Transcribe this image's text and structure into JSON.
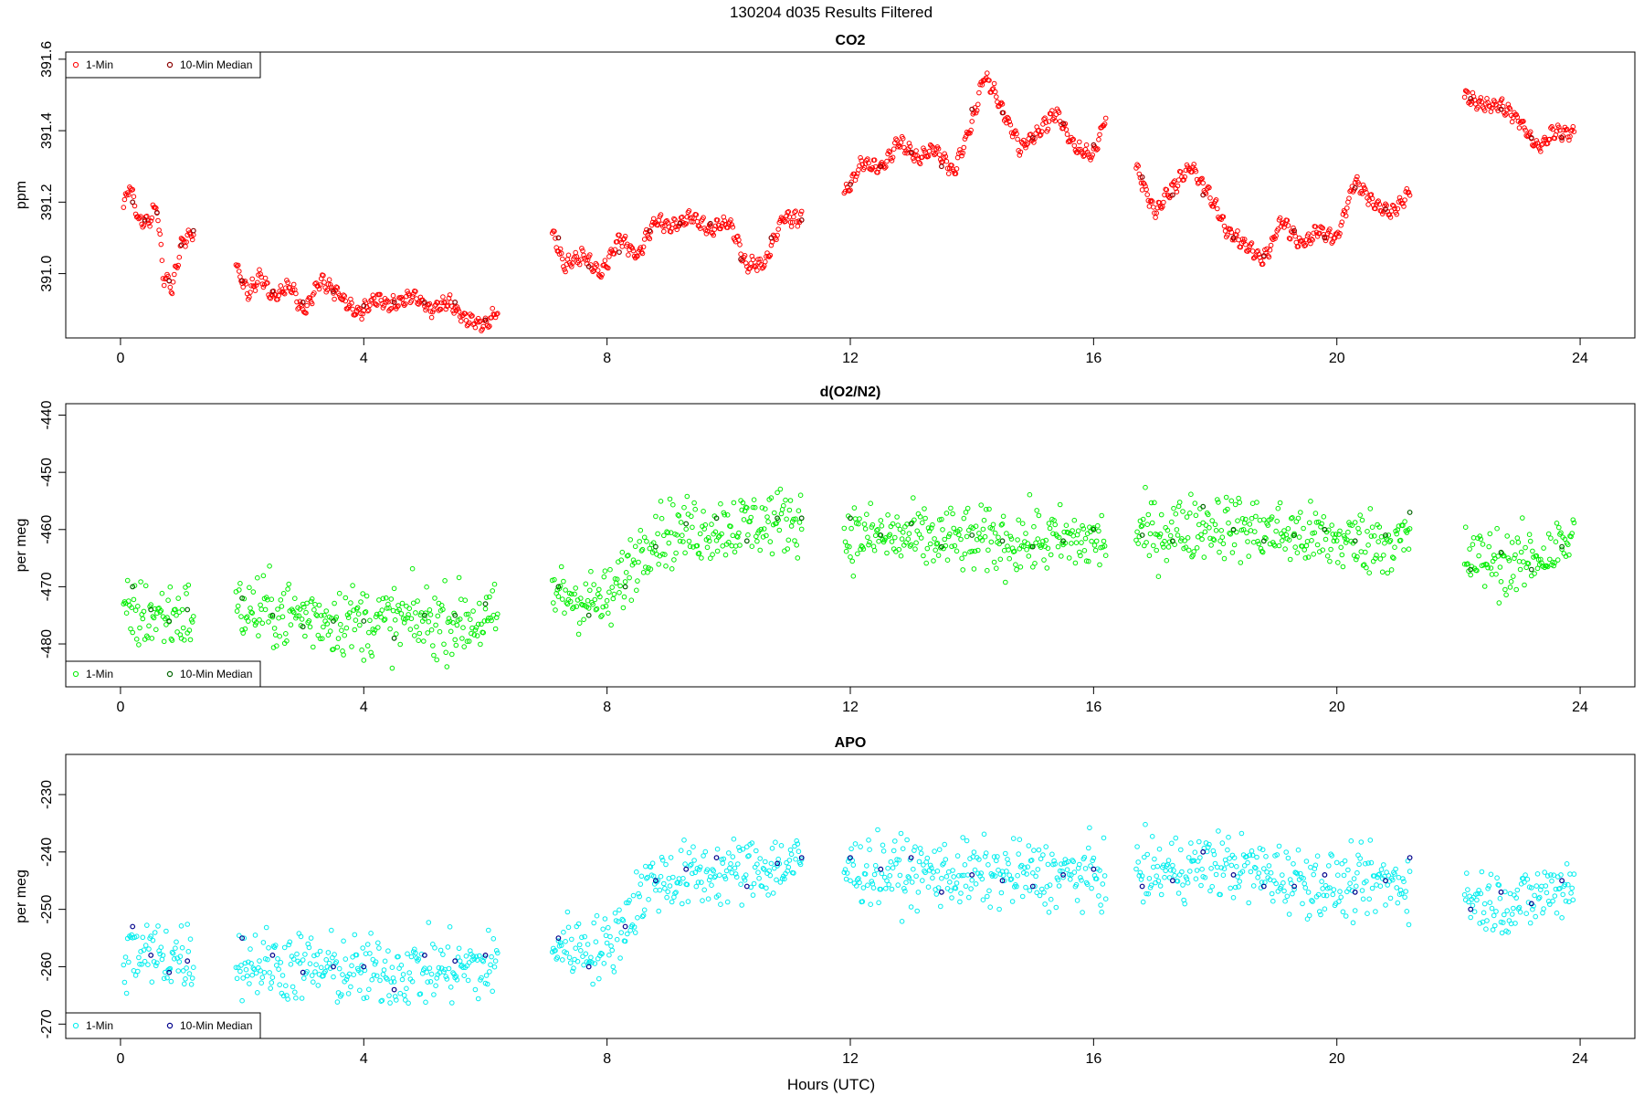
{
  "figure_title": "130204   d035   Results Filtered",
  "xlabel": "Hours (UTC)",
  "colors": {
    "co2_1min": "#ff0000",
    "co2_median": "#8b0000",
    "o2_1min": "#00ee00",
    "o2_median": "#006400",
    "apo_1min": "#00eeee",
    "apo_median": "#00008b",
    "axis": "#000000"
  },
  "chart_data": [
    {
      "type": "scatter",
      "title": "CO2",
      "ylabel": "ppm",
      "xlim": [
        -0.9,
        24.9
      ],
      "ylim": [
        390.82,
        391.62
      ],
      "xticks": [
        0,
        4,
        8,
        12,
        16,
        20,
        24
      ],
      "yticks": [
        391.0,
        391.2,
        391.4,
        391.6
      ],
      "ytick_labels": [
        "391.0",
        "391.2",
        "391.4",
        "391.6"
      ],
      "legend": {
        "position": "top-left",
        "entries": [
          "1-Min",
          "10-Min Median"
        ]
      },
      "grid": false,
      "series": [
        {
          "name": "1-Min",
          "segments": [
            {
              "x": [
                0.05,
                0.15,
                0.3,
                0.45,
                0.6,
                0.7,
                0.85,
                1.0,
                1.1,
                1.2
              ],
              "y": [
                391.18,
                391.25,
                391.15,
                391.14,
                391.19,
                391.0,
                390.96,
                391.08,
                391.1,
                391.12
              ]
            },
            {
              "x": [
                1.9,
                2.1,
                2.3,
                2.5,
                2.8,
                3.0,
                3.3,
                3.6,
                3.9,
                4.2,
                4.5,
                4.8,
                5.1,
                5.4,
                5.7,
                6.0,
                6.2
              ],
              "y": [
                391.02,
                390.94,
                391.0,
                390.93,
                390.97,
                390.89,
                390.98,
                390.94,
                390.89,
                390.93,
                390.91,
                390.94,
                390.9,
                390.92,
                390.87,
                390.86,
                390.89
              ]
            },
            {
              "x": [
                7.1,
                7.3,
                7.6,
                7.9,
                8.2,
                8.5,
                8.8,
                9.1,
                9.4,
                9.7,
                10.0,
                10.3,
                10.6,
                10.9,
                11.2
              ],
              "y": [
                391.12,
                391.02,
                391.05,
                391.0,
                391.1,
                391.05,
                391.15,
                391.13,
                391.16,
                391.12,
                391.15,
                391.02,
                391.03,
                391.16,
                391.15
              ]
            },
            {
              "x": [
                11.9,
                12.2,
                12.5,
                12.8,
                13.1,
                13.4,
                13.7,
                14.0,
                14.2,
                14.5,
                14.8,
                15.1,
                15.4,
                15.7,
                16.0,
                16.2
              ],
              "y": [
                391.22,
                391.31,
                391.29,
                391.37,
                391.32,
                391.35,
                391.28,
                391.42,
                391.56,
                391.46,
                391.35,
                391.4,
                391.45,
                391.35,
                391.33,
                391.44
              ]
            },
            {
              "x": [
                16.7,
                17.0,
                17.3,
                17.6,
                17.9,
                18.2,
                18.5,
                18.8,
                19.1,
                19.4,
                19.7,
                20.0,
                20.3,
                20.6,
                20.9,
                21.2
              ],
              "y": [
                391.3,
                391.17,
                391.24,
                391.3,
                391.22,
                391.12,
                391.08,
                391.04,
                391.15,
                391.08,
                391.12,
                391.1,
                391.26,
                391.2,
                391.17,
                391.23
              ]
            },
            {
              "x": [
                22.1,
                22.4,
                22.7,
                23.0,
                23.3,
                23.6,
                23.9
              ],
              "y": [
                391.5,
                391.47,
                391.47,
                391.43,
                391.35,
                391.4,
                391.39
              ]
            }
          ]
        },
        {
          "name": "10-Min Median",
          "segments": [
            {
              "x": [
                0.2,
                0.4,
                0.6,
                0.8,
                1.0,
                1.2
              ],
              "y": [
                391.2,
                391.15,
                391.17,
                390.98,
                391.08,
                391.12
              ]
            },
            {
              "x": [
                2.0,
                2.5,
                3.0,
                3.5,
                4.0,
                4.5,
                5.0,
                5.5,
                6.0
              ],
              "y": [
                390.98,
                390.95,
                390.92,
                390.95,
                390.91,
                390.92,
                390.92,
                390.92,
                390.87
              ]
            },
            {
              "x": [
                7.2,
                7.7,
                8.2,
                8.7,
                9.2,
                9.7,
                10.2,
                10.7,
                11.2
              ],
              "y": [
                391.1,
                391.02,
                391.06,
                391.12,
                391.14,
                391.14,
                391.04,
                391.1,
                391.15
              ]
            },
            {
              "x": [
                12.0,
                12.5,
                13.0,
                13.5,
                14.0,
                14.5,
                15.0,
                15.5,
                16.0
              ],
              "y": [
                391.25,
                391.3,
                391.34,
                391.3,
                391.46,
                391.45,
                391.38,
                391.42,
                391.36
              ]
            },
            {
              "x": [
                16.8,
                17.3,
                17.8,
                18.3,
                18.8,
                19.3,
                19.8,
                20.3,
                20.8
              ],
              "y": [
                391.27,
                391.22,
                391.22,
                391.1,
                391.05,
                391.12,
                391.1,
                391.24,
                391.18
              ]
            },
            {
              "x": [
                22.2,
                22.7,
                23.2,
                23.7
              ],
              "y": [
                391.49,
                391.46,
                391.38,
                391.38
              ]
            }
          ]
        }
      ]
    },
    {
      "type": "scatter",
      "title": "d(O2/N2)",
      "ylabel": "per meg",
      "xlim": [
        -0.9,
        24.9
      ],
      "ylim": [
        -487.5,
        -438
      ],
      "xticks": [
        0,
        4,
        8,
        12,
        16,
        20,
        24
      ],
      "yticks": [
        -480,
        -470,
        -460,
        -450,
        -440
      ],
      "ytick_labels": [
        "-480",
        "-470",
        "-460",
        "-450",
        "-440"
      ],
      "legend": {
        "position": "bottom-left",
        "entries": [
          "1-Min",
          "10-Min Median"
        ]
      },
      "grid": false,
      "series": [
        {
          "name": "1-Min",
          "scatter": true,
          "segments": [
            {
              "x": [
                0.05,
                0.95,
                1.2
              ],
              "y": [
                -475,
                -475,
                -475
              ],
              "spread": 6
            },
            {
              "x": [
                1.9,
                4.0,
                6.2
              ],
              "y": [
                -474,
                -476,
                -476
              ],
              "spread": 6
            },
            {
              "x": [
                7.1,
                8.0,
                8.7,
                11.2
              ],
              "y": [
                -471,
                -473,
                -461,
                -458
              ],
              "spread": 5.5
            },
            {
              "x": [
                11.9,
                14.0,
                16.2
              ],
              "y": [
                -461,
                -462,
                -462
              ],
              "spread": 5.5
            },
            {
              "x": [
                16.7,
                18.0,
                20.0,
                21.2
              ],
              "y": [
                -461,
                -459,
                -462,
                -462
              ],
              "spread": 5.5
            },
            {
              "x": [
                22.1,
                23.0,
                23.9
              ],
              "y": [
                -465,
                -466,
                -462
              ],
              "spread": 5.5
            }
          ]
        },
        {
          "name": "10-Min Median",
          "segments": [
            {
              "x": [
                0.2,
                0.5,
                0.8,
                1.1
              ],
              "y": [
                -470,
                -474,
                -476,
                -474
              ]
            },
            {
              "x": [
                2.0,
                2.5,
                3.0,
                3.5,
                4.0,
                4.5,
                5.0,
                5.5,
                6.0
              ],
              "y": [
                -472,
                -475,
                -477,
                -476,
                -476,
                -479,
                -475,
                -475,
                -473
              ]
            },
            {
              "x": [
                7.2,
                7.7,
                8.3,
                8.8,
                9.3,
                9.8,
                10.3,
                10.8,
                11.2
              ],
              "y": [
                -470,
                -475,
                -470,
                -463,
                -459,
                -458,
                -462,
                -458,
                -458
              ]
            },
            {
              "x": [
                12.0,
                12.5,
                13.0,
                13.5,
                14.0,
                14.5,
                15.0,
                15.5,
                16.0
              ],
              "y": [
                -458,
                -461,
                -459,
                -463,
                -461,
                -462,
                -463,
                -462,
                -460
              ]
            },
            {
              "x": [
                16.8,
                17.3,
                17.8,
                18.3,
                18.8,
                19.3,
                19.8,
                20.3,
                20.8,
                21.2
              ],
              "y": [
                -461,
                -462,
                -456,
                -460,
                -462,
                -461,
                -460,
                -462,
                -461,
                -457
              ]
            },
            {
              "x": [
                22.2,
                22.7,
                23.2,
                23.7
              ],
              "y": [
                -467,
                -464,
                -467,
                -463
              ]
            }
          ]
        }
      ]
    },
    {
      "type": "scatter",
      "title": "APO",
      "ylabel": "per meg",
      "xlim": [
        -0.9,
        24.9
      ],
      "ylim": [
        -272.5,
        -223
      ],
      "xticks": [
        0,
        4,
        8,
        12,
        16,
        20,
        24
      ],
      "yticks": [
        -270,
        -260,
        -250,
        -240,
        -230
      ],
      "ytick_labels": [
        "-270",
        "-260",
        "-250",
        "-240",
        "-230"
      ],
      "legend": {
        "position": "bottom-left",
        "entries": [
          "1-Min",
          "10-Min Median"
        ]
      },
      "grid": false,
      "series": [
        {
          "name": "1-Min",
          "scatter": true,
          "segments": [
            {
              "x": [
                0.05,
                0.95,
                1.2
              ],
              "y": [
                -258,
                -258,
                -258
              ],
              "spread": 6
            },
            {
              "x": [
                1.9,
                4.0,
                6.2
              ],
              "y": [
                -259,
                -261,
                -260
              ],
              "spread": 6
            },
            {
              "x": [
                7.1,
                8.0,
                8.7,
                11.2
              ],
              "y": [
                -256,
                -257,
                -245,
                -242
              ],
              "spread": 5.5
            },
            {
              "x": [
                11.9,
                14.0,
                16.2
              ],
              "y": [
                -243,
                -244,
                -244
              ],
              "spread": 5.5
            },
            {
              "x": [
                16.7,
                18.0,
                20.0,
                21.2
              ],
              "y": [
                -244,
                -242,
                -246,
                -245
              ],
              "spread": 5.5
            },
            {
              "x": [
                22.1,
                23.0,
                23.9
              ],
              "y": [
                -248,
                -249,
                -245
              ],
              "spread": 5.5
            }
          ]
        },
        {
          "name": "10-Min Median",
          "segments": [
            {
              "x": [
                0.2,
                0.5,
                0.8,
                1.1
              ],
              "y": [
                -253,
                -258,
                -261,
                -259
              ]
            },
            {
              "x": [
                2.0,
                2.5,
                3.0,
                3.5,
                4.0,
                4.5,
                5.0,
                5.5,
                6.0
              ],
              "y": [
                -255,
                -258,
                -261,
                -260,
                -260,
                -264,
                -258,
                -259,
                -258
              ]
            },
            {
              "x": [
                7.2,
                7.7,
                8.3,
                8.8,
                9.3,
                9.8,
                10.3,
                10.8,
                11.2
              ],
              "y": [
                -255,
                -260,
                -253,
                -245,
                -243,
                -241,
                -246,
                -242,
                -241
              ]
            },
            {
              "x": [
                12.0,
                12.5,
                13.0,
                13.5,
                14.0,
                14.5,
                15.0,
                15.5,
                16.0
              ],
              "y": [
                -241,
                -243,
                -241,
                -247,
                -244,
                -245,
                -246,
                -244,
                -243
              ]
            },
            {
              "x": [
                16.8,
                17.3,
                17.8,
                18.3,
                18.8,
                19.3,
                19.8,
                20.3,
                20.8,
                21.2
              ],
              "y": [
                -246,
                -245,
                -240,
                -244,
                -246,
                -246,
                -244,
                -247,
                -245,
                -241
              ]
            },
            {
              "x": [
                22.2,
                22.7,
                23.2,
                23.7
              ],
              "y": [
                -250,
                -247,
                -249,
                -245
              ]
            }
          ]
        }
      ]
    }
  ]
}
